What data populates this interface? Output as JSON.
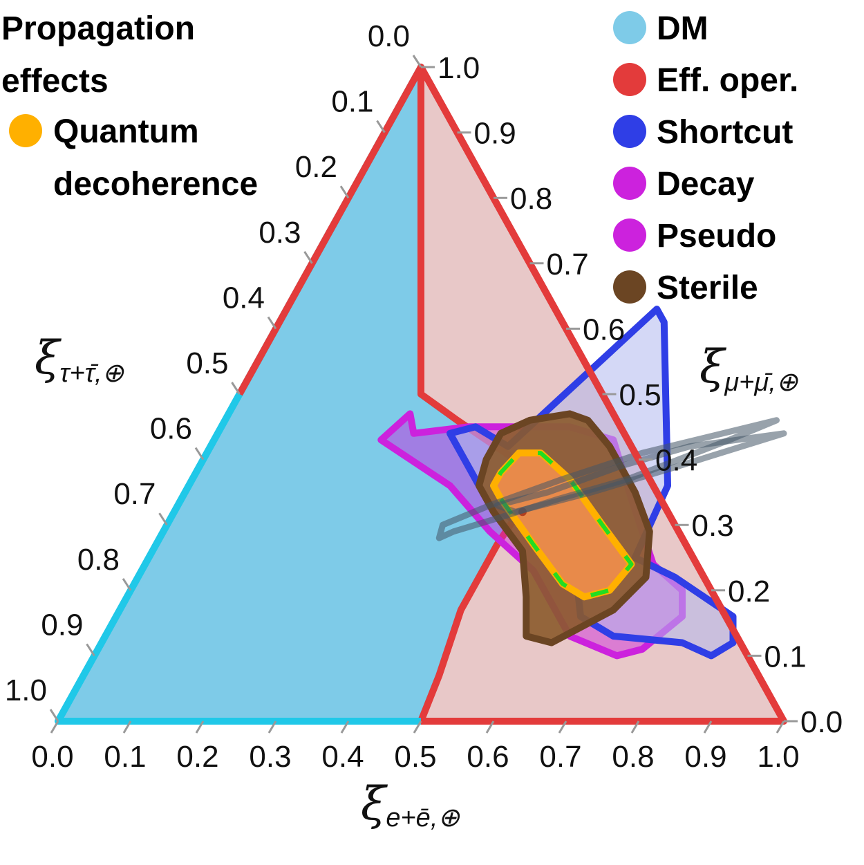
{
  "chart_data": {
    "type": "ternary",
    "axes": {
      "bottom": {
        "label_main": "ξ",
        "label_sub": "e+ē,⊕",
        "ticks": [
          "0.0",
          "0.1",
          "0.2",
          "0.3",
          "0.4",
          "0.5",
          "0.6",
          "0.7",
          "0.8",
          "0.9",
          "1.0"
        ]
      },
      "right": {
        "label_main": "ξ",
        "label_sub": "μ+μ̄,⊕",
        "ticks": [
          "0.0",
          "0.1",
          "0.2",
          "0.3",
          "0.4",
          "0.5",
          "0.6",
          "0.7",
          "0.8",
          "0.9",
          "1.0"
        ]
      },
      "left": {
        "label_main": "ξ",
        "label_sub": "τ+τ̄,⊕",
        "ticks": [
          "0.0",
          "0.1",
          "0.2",
          "0.3",
          "0.4",
          "0.5",
          "0.6",
          "0.7",
          "0.8",
          "0.9",
          "1.0"
        ]
      }
    },
    "legend_left": {
      "title_line1": "Propagation",
      "title_line2": "effects",
      "entries": [
        {
          "line1": "Quantum",
          "line2": "decoherence",
          "color": "#ffb000"
        }
      ]
    },
    "legend_right": [
      {
        "name": "DM",
        "color": "#7ecbe8"
      },
      {
        "name": "Eff. oper.",
        "color": "#e33b3b"
      },
      {
        "name": "Shortcut",
        "color": "#2f3ee6"
      },
      {
        "name": "Decay",
        "color": "#cc22dd"
      },
      {
        "name": "Pseudo",
        "color": "#cc22dd"
      },
      {
        "name": "Sterile",
        "color": "#6b4523"
      }
    ],
    "regions": [
      {
        "name": "DM",
        "fill": "#7ecbe8",
        "stroke": "#20c8e8",
        "points": [
          [
            0,
            0
          ],
          [
            0.5,
            0
          ],
          [
            0.49,
            0.07
          ],
          [
            0.47,
            0.17
          ],
          [
            0.47,
            0.27
          ],
          [
            0.48,
            0.37
          ],
          [
            0.43,
            0.4
          ],
          [
            0.32,
            0.46
          ],
          [
            0.25,
            0.5
          ],
          [
            0.0,
            1.0
          ]
        ]
      },
      {
        "name": "Eff. oper.",
        "fill": "#e8c8c8",
        "stroke": "#e33b3b",
        "points": [
          [
            0.5,
            0
          ],
          [
            1,
            0
          ],
          [
            0,
            1
          ],
          [
            0.25,
            0.5
          ],
          [
            0.32,
            0.46
          ],
          [
            0.43,
            0.4
          ],
          [
            0.48,
            0.37
          ],
          [
            0.47,
            0.27
          ],
          [
            0.47,
            0.17
          ],
          [
            0.49,
            0.07
          ]
        ]
      },
      {
        "name": "Pseudo",
        "fill": "#cc22dd",
        "stroke": "#cc22dd",
        "points": [
          [
            0.27,
            0.44
          ],
          [
            0.34,
            0.45
          ],
          [
            0.48,
            0.45
          ],
          [
            0.55,
            0.43
          ],
          [
            0.62,
            0.34
          ],
          [
            0.7,
            0.24
          ],
          [
            0.76,
            0.2
          ],
          [
            0.78,
            0.16
          ],
          [
            0.75,
            0.11
          ],
          [
            0.72,
            0.1
          ],
          [
            0.64,
            0.13
          ],
          [
            0.54,
            0.23
          ],
          [
            0.45,
            0.29
          ],
          [
            0.36,
            0.36
          ],
          [
            0.23,
            0.43
          ],
          [
            0.25,
            0.47
          ]
        ]
      },
      {
        "name": "Shortcut",
        "fill": "#b0b8ee",
        "stroke": "#2f3ee6",
        "points": [
          [
            0.32,
            0.44
          ],
          [
            0.35,
            0.45
          ],
          [
            0.41,
            0.42
          ],
          [
            0.51,
            0.63
          ],
          [
            0.53,
            0.61
          ],
          [
            0.66,
            0.36
          ],
          [
            0.67,
            0.25
          ],
          [
            0.74,
            0.22
          ],
          [
            0.85,
            0.16
          ],
          [
            0.87,
            0.12
          ],
          [
            0.85,
            0.1
          ],
          [
            0.8,
            0.12
          ],
          [
            0.7,
            0.13
          ],
          [
            0.64,
            0.16
          ],
          [
            0.61,
            0.21
          ],
          [
            0.55,
            0.27
          ],
          [
            0.43,
            0.33
          ],
          [
            0.37,
            0.39
          ]
        ]
      },
      {
        "name": "Sterile",
        "fill": "#8b5a2b",
        "stroke": "#6b4523",
        "points": [
          [
            0.39,
            0.44
          ],
          [
            0.42,
            0.46
          ],
          [
            0.47,
            0.47
          ],
          [
            0.5,
            0.46
          ],
          [
            0.55,
            0.42
          ],
          [
            0.62,
            0.35
          ],
          [
            0.67,
            0.29
          ],
          [
            0.7,
            0.22
          ],
          [
            0.68,
            0.17
          ],
          [
            0.62,
            0.12
          ],
          [
            0.58,
            0.13
          ],
          [
            0.55,
            0.19
          ],
          [
            0.51,
            0.26
          ],
          [
            0.44,
            0.32
          ],
          [
            0.4,
            0.36
          ],
          [
            0.39,
            0.4
          ]
        ]
      },
      {
        "name": "Quantum decoherence",
        "fill": "#e88a4a",
        "stroke": "#ffb000",
        "dash_stroke": "#22dd22",
        "points": [
          [
            0.42,
            0.38
          ],
          [
            0.43,
            0.41
          ],
          [
            0.46,
            0.41
          ],
          [
            0.52,
            0.37
          ],
          [
            0.6,
            0.3
          ],
          [
            0.67,
            0.24
          ],
          [
            0.66,
            0.2
          ],
          [
            0.63,
            0.19
          ],
          [
            0.59,
            0.21
          ],
          [
            0.52,
            0.27
          ],
          [
            0.44,
            0.34
          ],
          [
            0.42,
            0.36
          ]
        ]
      }
    ],
    "best_fit": {
      "e": 0.48,
      "mu": 0.32
    },
    "grey_curves": [
      [
        [
          0.385,
          0.28
        ],
        [
          0.4,
          0.29
        ],
        [
          0.45,
          0.31
        ],
        [
          0.52,
          0.34
        ],
        [
          0.6,
          0.37
        ],
        [
          0.71,
          0.43
        ],
        [
          0.76,
          0.46
        ],
        [
          0.6,
          0.41
        ],
        [
          0.51,
          0.37
        ],
        [
          0.43,
          0.33
        ],
        [
          0.38,
          0.3
        ]
      ],
      [
        [
          0.44,
          0.33
        ],
        [
          0.5,
          0.35
        ],
        [
          0.58,
          0.39
        ],
        [
          0.66,
          0.42
        ],
        [
          0.78,
          0.44
        ],
        [
          0.66,
          0.39
        ],
        [
          0.56,
          0.35
        ],
        [
          0.47,
          0.32
        ]
      ]
    ]
  }
}
